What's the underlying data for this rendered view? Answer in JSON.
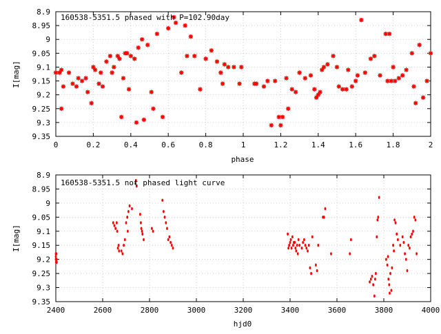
{
  "chart_data": [
    {
      "type": "scatter",
      "title": "160538-5351.5 phased with P=102.90day",
      "xlabel": "phase",
      "ylabel": "I[mag]",
      "xlim": [
        0,
        2
      ],
      "ylim": [
        9.35,
        8.9
      ],
      "y_inverted": true,
      "x_ticks": [
        "0",
        "0.2",
        "0.4",
        "0.6",
        "0.8",
        "1",
        "1.2",
        "1.4",
        "1.6",
        "1.8",
        "2"
      ],
      "y_ticks": [
        "8.9",
        "8.95",
        "9",
        "9.05",
        "9.1",
        "9.15",
        "9.2",
        "9.25",
        "9.3",
        "9.35"
      ],
      "grid": true,
      "marker_color": "#ff0000",
      "marker": "star",
      "x": [
        0.0,
        0.02,
        0.03,
        0.03,
        0.04,
        0.07,
        0.09,
        0.11,
        0.12,
        0.14,
        0.16,
        0.17,
        0.19,
        0.2,
        0.21,
        0.23,
        0.24,
        0.25,
        0.27,
        0.29,
        0.3,
        0.31,
        0.33,
        0.34,
        0.35,
        0.36,
        0.37,
        0.38,
        0.39,
        0.4,
        0.42,
        0.43,
        0.44,
        0.46,
        0.47,
        0.49,
        0.51,
        0.52,
        0.54,
        0.57,
        0.6,
        0.63,
        0.64,
        0.67,
        0.69,
        0.7,
        0.72,
        0.74,
        0.77,
        0.8,
        0.83,
        0.86,
        0.88,
        0.89,
        0.9,
        0.92,
        0.95,
        0.98,
        0.99,
        1.06,
        1.07,
        1.11,
        1.13,
        1.15,
        1.17,
        1.19,
        1.2,
        1.21,
        1.23,
        1.24,
        1.26,
        1.28,
        1.3,
        1.33,
        1.36,
        1.38,
        1.39,
        1.4,
        1.41,
        1.42,
        1.43,
        1.45,
        1.48,
        1.5,
        1.51,
        1.53,
        1.55,
        1.56,
        1.58,
        1.6,
        1.61,
        1.63,
        1.65,
        1.68,
        1.7,
        1.73,
        1.76,
        1.77,
        1.78,
        1.79,
        1.8,
        1.81,
        1.83,
        1.85,
        1.87,
        1.9,
        1.91,
        1.92,
        1.94,
        1.96,
        1.98,
        2.0
      ],
      "y": [
        9.12,
        9.12,
        9.25,
        9.11,
        9.17,
        9.12,
        9.16,
        9.17,
        9.14,
        9.15,
        9.14,
        9.19,
        9.23,
        9.1,
        9.11,
        9.16,
        9.12,
        9.17,
        9.08,
        9.06,
        9.12,
        9.1,
        9.06,
        9.07,
        9.28,
        9.14,
        9.05,
        9.05,
        9.18,
        9.06,
        9.07,
        9.3,
        9.03,
        9.0,
        9.29,
        9.02,
        9.19,
        9.25,
        8.98,
        9.28,
        8.96,
        8.92,
        8.94,
        9.12,
        8.95,
        9.06,
        8.99,
        9.06,
        9.18,
        9.07,
        9.04,
        9.08,
        9.12,
        9.16,
        9.09,
        9.1,
        9.1,
        9.16,
        9.1,
        9.16,
        9.16,
        9.17,
        9.15,
        9.31,
        9.15,
        9.28,
        9.31,
        9.28,
        9.14,
        9.25,
        9.18,
        9.19,
        9.12,
        9.14,
        9.13,
        9.18,
        9.21,
        9.2,
        9.19,
        9.11,
        9.1,
        9.09,
        9.06,
        9.1,
        9.17,
        9.18,
        9.18,
        9.11,
        9.17,
        9.15,
        9.13,
        8.93,
        9.12,
        9.07,
        9.06,
        9.13,
        8.98,
        9.15,
        8.98,
        9.15,
        9.1,
        9.15,
        9.14,
        9.13,
        9.11,
        9.05,
        9.17,
        9.23,
        9.02,
        9.21,
        9.15,
        9.05
      ]
    },
    {
      "type": "scatter",
      "title": "160538-5351.5 not phased light curve",
      "xlabel": "hjd0",
      "ylabel": "I[mag]",
      "xlim": [
        2400,
        4000
      ],
      "ylim": [
        9.35,
        8.9
      ],
      "y_inverted": true,
      "x_ticks": [
        "2400",
        "2600",
        "2800",
        "3000",
        "3200",
        "3400",
        "3600",
        "3800",
        "4000"
      ],
      "y_ticks": [
        "8.9",
        "8.95",
        "9",
        "9.05",
        "9.1",
        "9.15",
        "9.2",
        "9.25",
        "9.3",
        "9.35"
      ],
      "grid": true,
      "marker_color": "#ff0000",
      "marker": "dot",
      "x": [
        2400,
        2400,
        2400,
        2401,
        2402,
        2403,
        2404,
        2645,
        2650,
        2655,
        2660,
        2662,
        2665,
        2668,
        2670,
        2680,
        2685,
        2690,
        2695,
        2700,
        2705,
        2707,
        2710,
        2715,
        2725,
        2740,
        2742,
        2745,
        2760,
        2763,
        2765,
        2768,
        2770,
        2775,
        2810,
        2815,
        2855,
        2860,
        2865,
        2870,
        2875,
        2880,
        2885,
        2890,
        2895,
        2900,
        3390,
        3393,
        3396,
        3400,
        3403,
        3406,
        3410,
        3413,
        3416,
        3420,
        3423,
        3426,
        3430,
        3433,
        3436,
        3440,
        3450,
        3455,
        3460,
        3465,
        3470,
        3475,
        3480,
        3485,
        3490,
        3495,
        3510,
        3515,
        3520,
        3540,
        3545,
        3550,
        3575,
        3655,
        3660,
        3740,
        3745,
        3750,
        3755,
        3760,
        3763,
        3766,
        3770,
        3773,
        3776,
        3780,
        3810,
        3815,
        3818,
        3820,
        3823,
        3825,
        3828,
        3832,
        3835,
        3840,
        3843,
        3846,
        3850,
        3855,
        3860,
        3870,
        3880,
        3885,
        3890,
        3895,
        3900,
        3905,
        3910,
        3915,
        3920,
        3925,
        3930,
        3935,
        3940
      ],
      "y": [
        9.18,
        9.19,
        9.2,
        9.21,
        9.18,
        9.2,
        9.21,
        9.07,
        9.08,
        9.09,
        9.07,
        9.1,
        9.16,
        9.15,
        9.17,
        9.17,
        9.18,
        9.15,
        9.13,
        9.07,
        9.05,
        9.1,
        9.03,
        9.01,
        9.02,
        8.93,
        8.92,
        8.94,
        9.04,
        9.07,
        9.09,
        9.1,
        9.11,
        9.13,
        9.09,
        9.1,
        8.99,
        9.03,
        9.05,
        9.07,
        9.09,
        9.13,
        9.12,
        9.14,
        9.15,
        9.16,
        9.11,
        9.16,
        9.15,
        9.14,
        9.13,
        9.16,
        9.12,
        9.15,
        9.14,
        9.14,
        9.16,
        9.17,
        9.15,
        9.18,
        9.13,
        9.15,
        9.16,
        9.14,
        9.13,
        9.15,
        9.16,
        9.17,
        9.15,
        9.23,
        9.25,
        9.12,
        9.22,
        9.24,
        9.15,
        9.05,
        9.05,
        9.02,
        9.18,
        9.18,
        9.13,
        9.28,
        9.27,
        9.26,
        9.29,
        9.33,
        9.27,
        9.25,
        9.12,
        9.06,
        9.05,
        8.98,
        9.2,
        9.22,
        9.19,
        9.27,
        9.29,
        9.32,
        9.25,
        9.31,
        9.23,
        9.15,
        9.17,
        9.06,
        9.07,
        9.11,
        9.13,
        9.15,
        9.12,
        9.14,
        9.18,
        9.2,
        9.24,
        9.15,
        9.16,
        9.12,
        9.11,
        9.1,
        9.05,
        9.06,
        9.18
      ]
    }
  ]
}
